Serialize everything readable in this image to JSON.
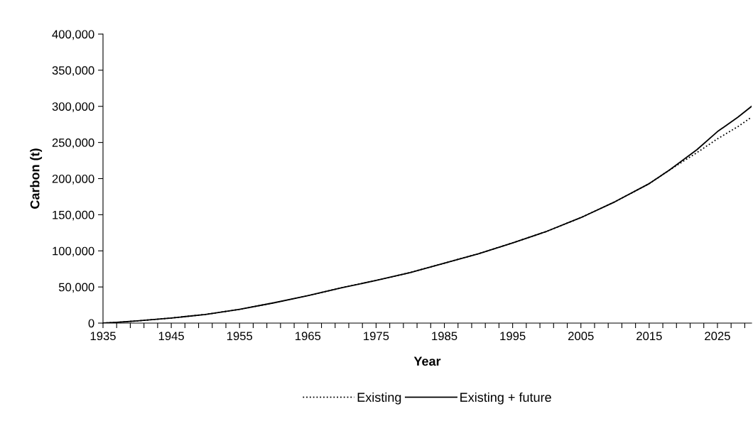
{
  "chart_data": {
    "type": "line",
    "xlabel": "Year",
    "ylabel": "Carbon (t)",
    "x": [
      1935,
      1937,
      1940,
      1945,
      1950,
      1955,
      1960,
      1965,
      1970,
      1975,
      1980,
      1985,
      1990,
      1995,
      2000,
      2005,
      2010,
      2015,
      2018,
      2020,
      2022,
      2025,
      2028,
      2030
    ],
    "series": [
      {
        "name": "Existing",
        "color": "#000000",
        "line_style": "dotted",
        "values": [
          0,
          1000,
          3000,
          7000,
          12000,
          19000,
          28000,
          38000,
          49000,
          59000,
          70000,
          83000,
          96000,
          111000,
          127000,
          146000,
          168000,
          193000,
          212000,
          224000,
          236000,
          255000,
          272000,
          285000
        ]
      },
      {
        "name": "Existing + future",
        "color": "#000000",
        "line_style": "solid",
        "values": [
          0,
          1000,
          3000,
          7000,
          12000,
          19000,
          28000,
          38000,
          49000,
          59000,
          70000,
          83000,
          96000,
          111000,
          127000,
          146000,
          168000,
          193000,
          212000,
          226000,
          240000,
          265000,
          285000,
          300000
        ]
      }
    ],
    "xlim": [
      1935,
      2030
    ],
    "ylim": [
      0,
      400000
    ],
    "xticks": [
      1935,
      {
        "value": 1937,
        "label": null
      },
      {
        "value": 1939,
        "label": null
      },
      {
        "value": 1941,
        "label": null
      },
      {
        "value": 1943,
        "label": null
      },
      1945,
      {
        "value": 1947,
        "label": null
      },
      {
        "value": 1949,
        "label": null
      },
      {
        "value": 1951,
        "label": null
      },
      {
        "value": 1953,
        "label": null
      },
      1955,
      {
        "value": 1957,
        "label": null
      },
      {
        "value": 1959,
        "label": null
      },
      {
        "value": 1961,
        "label": null
      },
      {
        "value": 1963,
        "label": null
      },
      1965,
      {
        "value": 1967,
        "label": null
      },
      {
        "value": 1969,
        "label": null
      },
      {
        "value": 1971,
        "label": null
      },
      {
        "value": 1973,
        "label": null
      },
      1975,
      {
        "value": 1977,
        "label": null
      },
      {
        "value": 1979,
        "label": null
      },
      {
        "value": 1981,
        "label": null
      },
      {
        "value": 1983,
        "label": null
      },
      1985,
      {
        "value": 1987,
        "label": null
      },
      {
        "value": 1989,
        "label": null
      },
      {
        "value": 1991,
        "label": null
      },
      {
        "value": 1993,
        "label": null
      },
      1995,
      {
        "value": 1997,
        "label": null
      },
      {
        "value": 1999,
        "label": null
      },
      {
        "value": 2001,
        "label": null
      },
      {
        "value": 2003,
        "label": null
      },
      2005,
      {
        "value": 2007,
        "label": null
      },
      {
        "value": 2009,
        "label": null
      },
      {
        "value": 2011,
        "label": null
      },
      {
        "value": 2013,
        "label": null
      },
      2015,
      {
        "value": 2017,
        "label": null
      },
      {
        "value": 2019,
        "label": null
      },
      {
        "value": 2021,
        "label": null
      },
      {
        "value": 2023,
        "label": null
      },
      2025,
      {
        "value": 2027,
        "label": null
      },
      {
        "value": 2029,
        "label": null
      }
    ],
    "yticks": [
      {
        "value": 0,
        "label": "0"
      },
      {
        "value": 50000,
        "label": "50,000"
      },
      {
        "value": 100000,
        "label": "100,000"
      },
      {
        "value": 150000,
        "label": "150,000"
      },
      {
        "value": 200000,
        "label": "200,000"
      },
      {
        "value": 250000,
        "label": "250,000"
      },
      {
        "value": 300000,
        "label": "300,000"
      },
      {
        "value": 350000,
        "label": "350,000"
      },
      {
        "value": 400000,
        "label": "400,000"
      }
    ],
    "grid": false,
    "legend": "bottom",
    "marker": "none"
  }
}
